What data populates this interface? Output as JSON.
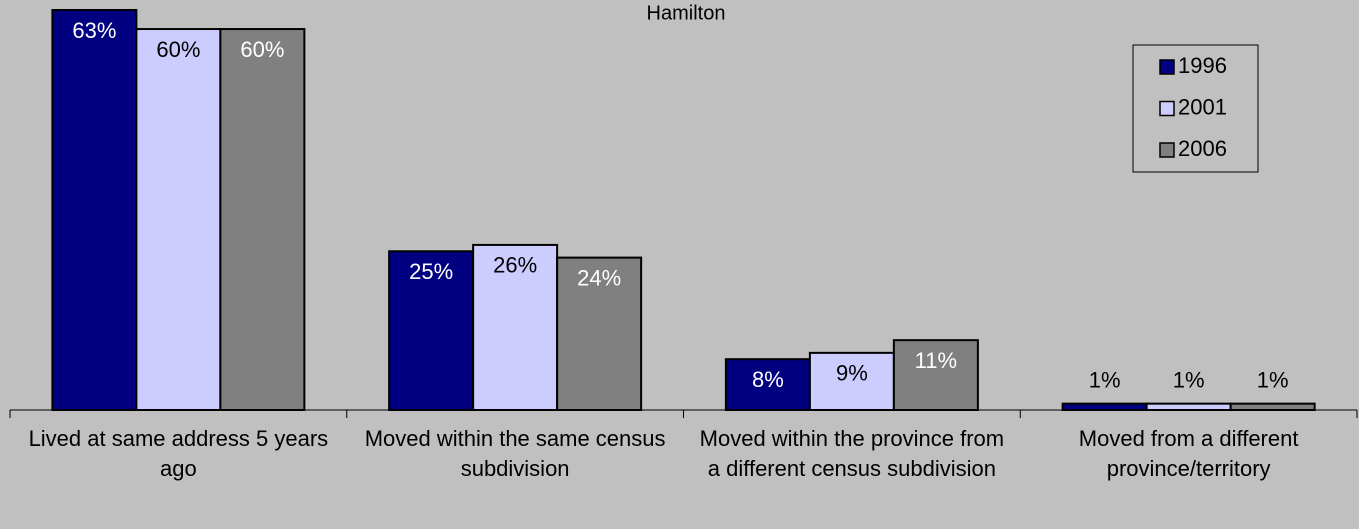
{
  "chart_data": {
    "type": "bar",
    "title": "Hamilton",
    "categories": [
      "Lived at same address 5 years ago",
      "Moved within the same census subdivision",
      "Moved within the province from a different census subdivision",
      "Moved from a different province/territory"
    ],
    "series": [
      {
        "name": "1996",
        "color": "#000080",
        "values": [
          63,
          25,
          8,
          1
        ],
        "value_labels": [
          "63%",
          "25%",
          "8%",
          "1%"
        ]
      },
      {
        "name": "2001",
        "color": "#ccccff",
        "values": [
          60,
          26,
          9,
          1
        ],
        "value_labels": [
          "60%",
          "26%",
          "9%",
          "1%"
        ]
      },
      {
        "name": "2006",
        "color": "#808080",
        "values": [
          60,
          24,
          11,
          1
        ],
        "value_labels": [
          "60%",
          "24%",
          "11%",
          "1%"
        ]
      }
    ],
    "ylim": [
      0,
      65
    ],
    "legend": "upper right"
  }
}
